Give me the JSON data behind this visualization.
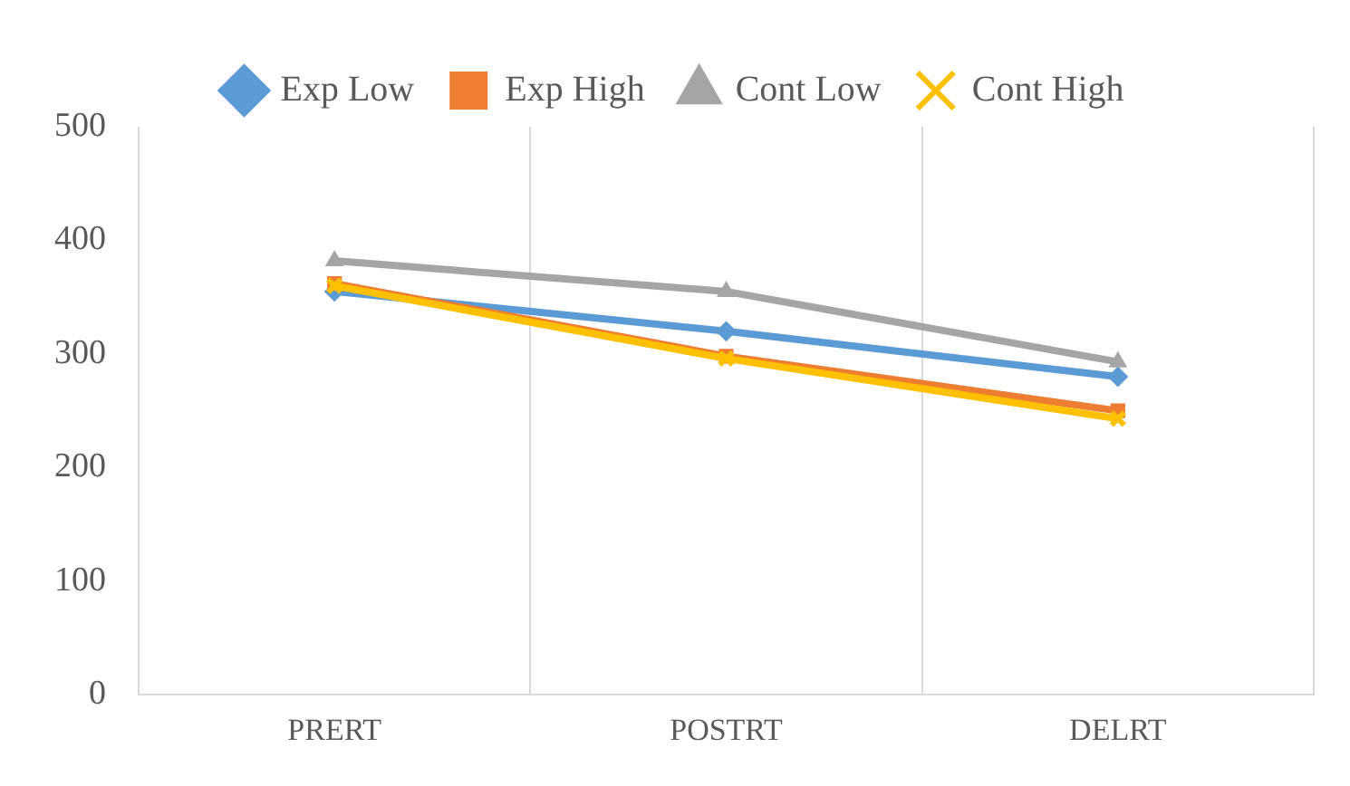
{
  "chart_data": {
    "type": "line",
    "categories": [
      "PRERT",
      "POSTRT",
      "DELRT"
    ],
    "series": [
      {
        "name": "Exp Low",
        "color": "#5b9bd5",
        "marker": "diamond",
        "values": [
          355,
          320,
          280
        ]
      },
      {
        "name": "Exp High",
        "color": "#ed7d31",
        "marker": "square",
        "values": [
          362,
          298,
          250
        ]
      },
      {
        "name": "Cont Low",
        "color": "#a5a5a5",
        "marker": "triangle",
        "values": [
          382,
          355,
          293
        ]
      },
      {
        "name": "Cont High",
        "color": "#ffc000",
        "marker": "cross",
        "values": [
          360,
          296,
          243
        ]
      }
    ],
    "ylim": [
      0,
      500
    ],
    "yticks": [
      0,
      100,
      200,
      300,
      400,
      500
    ],
    "grid": "x",
    "legend": "top"
  }
}
